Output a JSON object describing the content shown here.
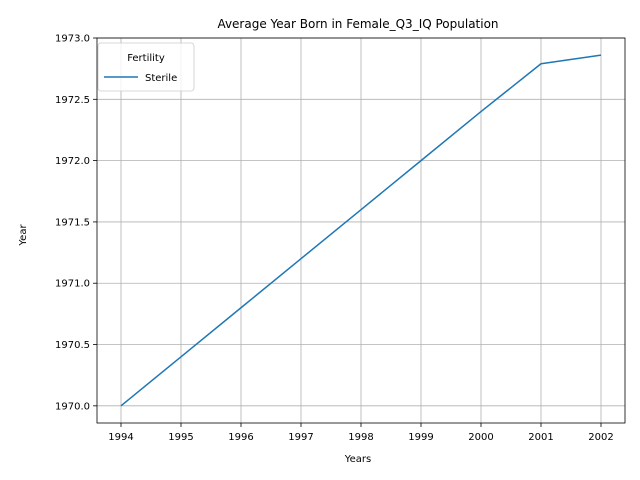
{
  "chart_data": {
    "type": "line",
    "title": "Average Year Born in Female_Q3_IQ Population",
    "xlabel": "Years",
    "ylabel": "Year",
    "x": [
      1994,
      1995,
      1996,
      1997,
      1998,
      1999,
      2000,
      2001,
      2002
    ],
    "xticks": [
      "1994",
      "1995",
      "1996",
      "1997",
      "1998",
      "1999",
      "2000",
      "2001",
      "2002"
    ],
    "yticks": [
      "1970.0",
      "1970.5",
      "1971.0",
      "1971.5",
      "1972.0",
      "1972.5",
      "1973.0"
    ],
    "xlim": [
      1993.6,
      2002.4
    ],
    "ylim": [
      1969.86,
      1973.0
    ],
    "grid": true,
    "legend": {
      "title": "Fertility",
      "placement": "top-left"
    },
    "series": [
      {
        "name": "Sterile",
        "color": "#1f77b4",
        "values": [
          1970.0,
          1970.4,
          1970.8,
          1971.2,
          1971.6,
          1972.0,
          1972.4,
          1972.79,
          1972.86
        ]
      }
    ]
  }
}
